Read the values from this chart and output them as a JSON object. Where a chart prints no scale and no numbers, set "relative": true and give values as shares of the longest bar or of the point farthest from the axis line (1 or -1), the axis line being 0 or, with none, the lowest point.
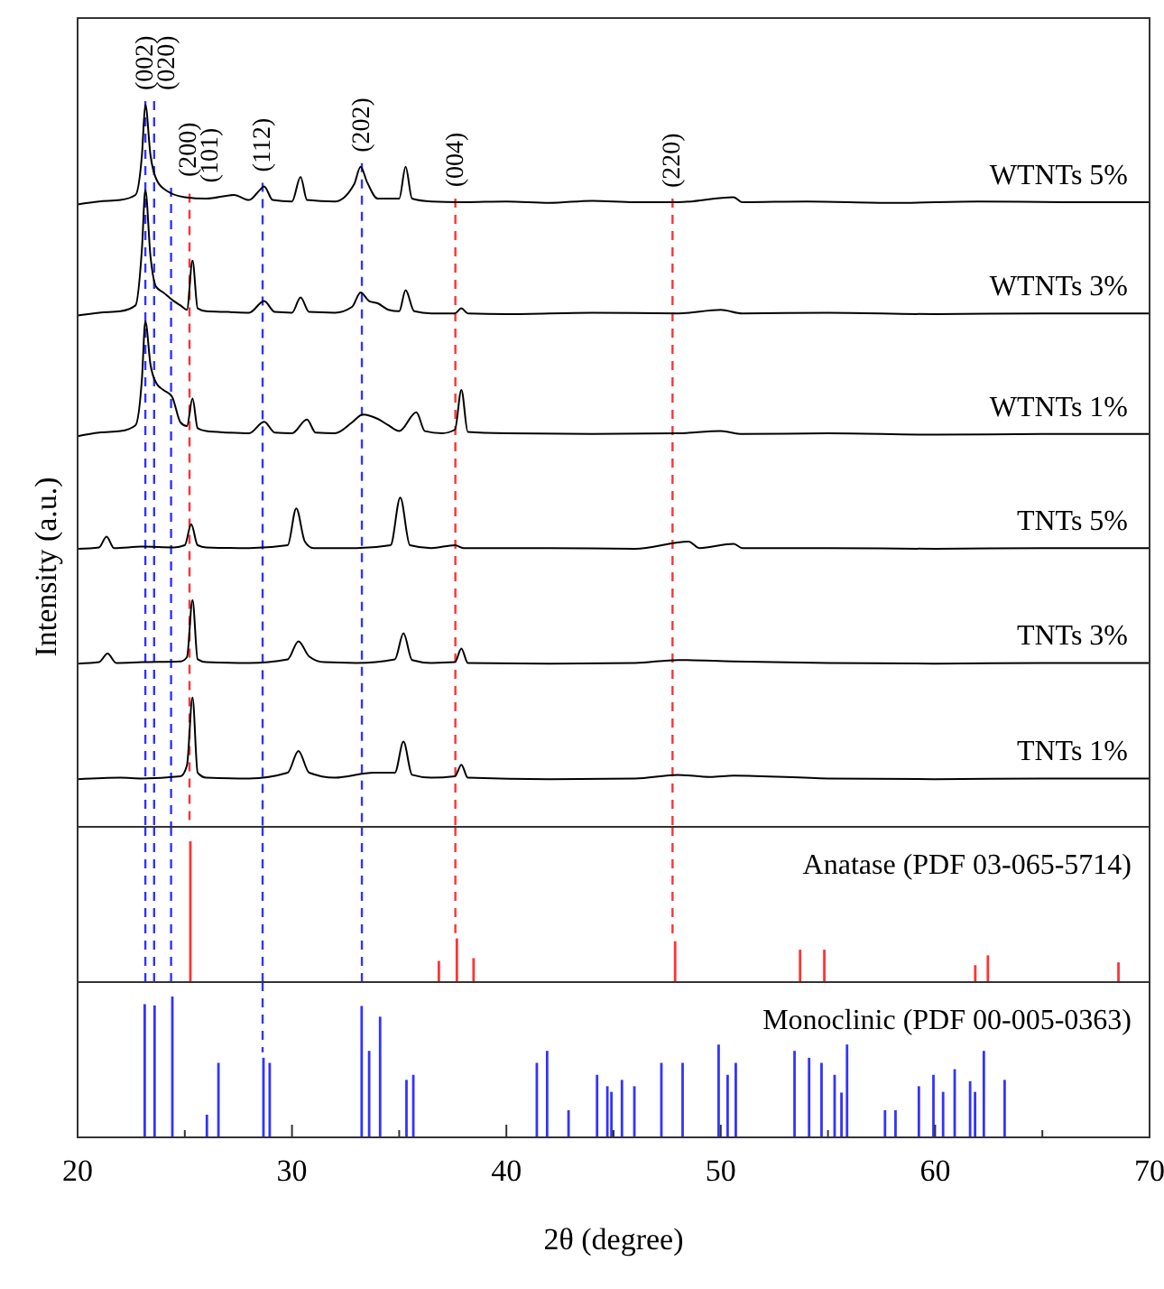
{
  "chart_data": [
    {
      "type": "line",
      "relative": true,
      "ylabel": "Intensity (a.u.)",
      "xlim": [
        20,
        70
      ],
      "tick_labels": false,
      "series": [
        {
          "name": "WTNTs 5%",
          "color": "#000000",
          "x": [
            20,
            21,
            22,
            22.7,
            23.0,
            23.16,
            23.4,
            23.7,
            24.2,
            25,
            26,
            27.3,
            28,
            28.5,
            28.7,
            29.1,
            30,
            30.4,
            30.7,
            32,
            32.9,
            33.2,
            33.5,
            34,
            35,
            35.3,
            35.6,
            36.5,
            38,
            40,
            42,
            44,
            46,
            48,
            50.6,
            51,
            54,
            58,
            62,
            66,
            70
          ],
          "values": [
            0.862,
            0.866,
            0.868,
            0.875,
            0.93,
            1.0,
            0.93,
            0.895,
            0.88,
            0.872,
            0.87,
            0.875,
            0.868,
            0.882,
            0.887,
            0.868,
            0.866,
            0.9,
            0.868,
            0.866,
            0.89,
            0.914,
            0.893,
            0.87,
            0.87,
            0.914,
            0.87,
            0.866,
            0.865,
            0.866,
            0.864,
            0.867,
            0.865,
            0.865,
            0.872,
            0.865,
            0.866,
            0.864,
            0.866,
            0.865,
            0.865
          ]
        },
        {
          "name": "WTNTs 3%",
          "color": "#000000",
          "x": [
            20,
            21,
            22,
            22.7,
            23.0,
            23.16,
            23.4,
            23.66,
            24.0,
            24.4,
            24.8,
            25.1,
            25.36,
            25.6,
            26,
            27,
            28,
            28.7,
            29.2,
            30,
            30.4,
            30.8,
            32,
            32.8,
            33.2,
            33.6,
            34,
            34.5,
            35,
            35.3,
            35.7,
            36.5,
            37.6,
            37.9,
            38.2,
            40,
            44,
            48,
            50,
            51,
            55,
            60,
            65,
            70
          ],
          "values": [
            0.708,
            0.712,
            0.714,
            0.722,
            0.8,
            0.882,
            0.79,
            0.748,
            0.74,
            0.73,
            0.722,
            0.716,
            0.784,
            0.718,
            0.714,
            0.713,
            0.712,
            0.728,
            0.713,
            0.712,
            0.733,
            0.713,
            0.712,
            0.72,
            0.74,
            0.728,
            0.725,
            0.716,
            0.714,
            0.743,
            0.714,
            0.711,
            0.711,
            0.718,
            0.711,
            0.71,
            0.712,
            0.711,
            0.716,
            0.711,
            0.712,
            0.71,
            0.711,
            0.711
          ]
        },
        {
          "name": "WTNTs 1%",
          "color": "#000000",
          "x": [
            20,
            21,
            22,
            22.7,
            23.0,
            23.16,
            23.4,
            23.7,
            24.0,
            24.4,
            24.8,
            25.1,
            25.36,
            25.6,
            26,
            27,
            28,
            28.7,
            29.2,
            30,
            30.7,
            31.1,
            32,
            32.8,
            33.3,
            34,
            34.5,
            35,
            35.8,
            36.2,
            37,
            37.6,
            37.9,
            38.2,
            40,
            44,
            48,
            50,
            51,
            55,
            60,
            65,
            70
          ],
          "values": [
            0.541,
            0.546,
            0.548,
            0.556,
            0.62,
            0.7,
            0.64,
            0.613,
            0.605,
            0.596,
            0.56,
            0.555,
            0.593,
            0.552,
            0.548,
            0.546,
            0.545,
            0.561,
            0.546,
            0.545,
            0.564,
            0.546,
            0.545,
            0.56,
            0.571,
            0.565,
            0.556,
            0.548,
            0.574,
            0.548,
            0.545,
            0.55,
            0.605,
            0.547,
            0.545,
            0.544,
            0.545,
            0.548,
            0.544,
            0.545,
            0.543,
            0.544,
            0.544
          ]
        },
        {
          "name": "TNTs 5%",
          "color": "#000000",
          "x": [
            20,
            21,
            21.35,
            21.7,
            23,
            24.5,
            25.0,
            25.3,
            25.6,
            26,
            28,
            29.8,
            30.2,
            30.6,
            31,
            33,
            34.6,
            35.05,
            35.5,
            36.5,
            37.6,
            38,
            42,
            46,
            48.5,
            49,
            50.6,
            51,
            55,
            60,
            65,
            70
          ],
          "values": [
            0.385,
            0.387,
            0.402,
            0.386,
            0.388,
            0.387,
            0.39,
            0.419,
            0.39,
            0.387,
            0.386,
            0.39,
            0.441,
            0.395,
            0.386,
            0.386,
            0.39,
            0.456,
            0.39,
            0.386,
            0.39,
            0.386,
            0.386,
            0.385,
            0.395,
            0.386,
            0.392,
            0.386,
            0.386,
            0.385,
            0.386,
            0.386
          ]
        },
        {
          "name": "TNTs 3%",
          "color": "#000000",
          "x": [
            20,
            21,
            21.4,
            21.8,
            23,
            24.8,
            25.1,
            25.36,
            25.6,
            26,
            28,
            29.8,
            30.3,
            30.8,
            31.5,
            33,
            34.8,
            35.2,
            35.6,
            36.5,
            37.6,
            37.9,
            38.2,
            42,
            46,
            48,
            50.6,
            55,
            60,
            65,
            70
          ],
          "values": [
            0.226,
            0.228,
            0.24,
            0.227,
            0.228,
            0.229,
            0.235,
            0.314,
            0.232,
            0.228,
            0.227,
            0.232,
            0.257,
            0.236,
            0.228,
            0.227,
            0.232,
            0.268,
            0.231,
            0.227,
            0.228,
            0.247,
            0.227,
            0.226,
            0.227,
            0.231,
            0.229,
            0.227,
            0.226,
            0.227,
            0.227
          ]
        },
        {
          "name": "TNTs 1%",
          "color": "#000000",
          "x": [
            20,
            22,
            23,
            24.8,
            25.1,
            25.36,
            25.6,
            26,
            28,
            29.8,
            30.3,
            30.8,
            32,
            33.8,
            34.8,
            35.2,
            35.6,
            36.5,
            37.6,
            37.9,
            38.2,
            42,
            46,
            48,
            49.5,
            50.6,
            55,
            60,
            65,
            70
          ],
          "values": [
            0.066,
            0.068,
            0.067,
            0.07,
            0.085,
            0.179,
            0.075,
            0.068,
            0.067,
            0.075,
            0.105,
            0.075,
            0.068,
            0.075,
            0.075,
            0.118,
            0.072,
            0.068,
            0.07,
            0.086,
            0.068,
            0.066,
            0.067,
            0.072,
            0.069,
            0.071,
            0.067,
            0.066,
            0.067,
            0.067
          ]
        }
      ],
      "annotations": [
        {
          "text": "(002)",
          "x": 23.16,
          "y": 1.0
        },
        {
          "text": "(020)",
          "x": 23.57,
          "y": 1.0
        },
        {
          "text": "(200)",
          "x": 24.36,
          "y": 0.88
        },
        {
          "text": "(101)",
          "x": 25.22,
          "y": 0.872
        },
        {
          "text": "(112)",
          "x": 28.63,
          "y": 0.887
        },
        {
          "text": "(202)",
          "x": 33.26,
          "y": 0.914
        },
        {
          "text": "(004)",
          "x": 37.62,
          "y": 0.866
        },
        {
          "text": "(220)",
          "x": 47.75,
          "y": 0.865
        }
      ],
      "ref_lines": [
        {
          "axis": "x",
          "value": 23.16,
          "color": "#3333ff",
          "line_style": "dashed"
        },
        {
          "axis": "x",
          "value": 23.57,
          "color": "#3333ff",
          "line_style": "dashed"
        },
        {
          "axis": "x",
          "value": 24.36,
          "color": "#3333ff",
          "line_style": "dashed"
        },
        {
          "axis": "x",
          "value": 25.22,
          "color": "#ff3333",
          "line_style": "dashed"
        },
        {
          "axis": "x",
          "value": 28.63,
          "color": "#3333ff",
          "line_style": "dashed"
        },
        {
          "axis": "x",
          "value": 33.26,
          "color": "#3333ff",
          "line_style": "dashed"
        },
        {
          "axis": "x",
          "value": 37.62,
          "color": "#ff3333",
          "line_style": "dashed"
        },
        {
          "axis": "x",
          "value": 47.75,
          "color": "#ff3333",
          "line_style": "dashed"
        }
      ]
    },
    {
      "type": "bar",
      "relative": true,
      "title": "Anatase (PDF 03-065-5714)",
      "xlim": [
        20,
        70
      ],
      "tick_labels": false,
      "color": "#ff3333",
      "x": [
        25.26,
        36.85,
        37.69,
        38.47,
        47.87,
        53.7,
        54.83,
        61.87,
        62.46,
        68.55
      ],
      "values": [
        1,
        0.15,
        0.31,
        0.17,
        0.29,
        0.23,
        0.23,
        0.12,
        0.19,
        0.14
      ],
      "ref_lines": [
        {
          "axis": "x",
          "value": 23.16,
          "color": "#3333ff",
          "line_style": "dashed"
        },
        {
          "axis": "x",
          "value": 23.57,
          "color": "#3333ff",
          "line_style": "dashed"
        },
        {
          "axis": "x",
          "value": 24.36,
          "color": "#3333ff",
          "line_style": "dashed"
        },
        {
          "axis": "x",
          "value": 28.63,
          "color": "#3333ff",
          "line_style": "dashed"
        },
        {
          "axis": "x",
          "value": 33.26,
          "color": "#3333ff",
          "line_style": "dashed"
        },
        {
          "axis": "x",
          "value": 37.62,
          "color": "#ff3333",
          "line_style": "dashed"
        },
        {
          "axis": "x",
          "value": 47.75,
          "color": "#ff3333",
          "line_style": "dashed"
        }
      ]
    },
    {
      "type": "bar",
      "relative": true,
      "title": "Monoclinic (PDF 00-005-0363)",
      "xlabel": "2θ (degree)",
      "xlim": [
        20,
        70
      ],
      "tick_labels": "x",
      "color": "#3333ff",
      "xticks": [
        20,
        {
          "value": 25,
          "label": null
        },
        30,
        {
          "value": 35,
          "label": null
        },
        40,
        {
          "value": 45,
          "label": null
        },
        50,
        {
          "value": 55,
          "label": null
        },
        60,
        {
          "value": 65,
          "label": null
        },
        70
      ],
      "x": [
        23.13,
        23.59,
        24.42,
        26.03,
        26.57,
        28.67,
        28.96,
        33.25,
        33.6,
        34.11,
        35.34,
        35.66,
        41.42,
        41.9,
        42.9,
        44.23,
        44.71,
        44.9,
        45.39,
        45.97,
        47.23,
        48.22,
        49.9,
        50.32,
        50.7,
        53.44,
        54.12,
        54.7,
        55.31,
        55.63,
        55.89,
        57.66,
        58.15,
        59.24,
        59.92,
        60.37,
        60.91,
        61.63,
        61.86,
        62.27,
        63.24
      ],
      "values": [
        0.946,
        0.937,
        1,
        0.161,
        0.529,
        0.565,
        0.529,
        0.933,
        0.614,
        0.857,
        0.408,
        0.444,
        0.529,
        0.614,
        0.193,
        0.444,
        0.363,
        0.323,
        0.408,
        0.363,
        0.529,
        0.529,
        0.659,
        0.444,
        0.529,
        0.614,
        0.565,
        0.529,
        0.444,
        0.318,
        0.659,
        0.193,
        0.193,
        0.363,
        0.444,
        0.323,
        0.484,
        0.399,
        0.323,
        0.614,
        0.408
      ],
      "ref_lines": [
        {
          "axis": "x",
          "value": 28.63,
          "color": "#3333ff",
          "line_style": "dashed"
        }
      ]
    }
  ]
}
